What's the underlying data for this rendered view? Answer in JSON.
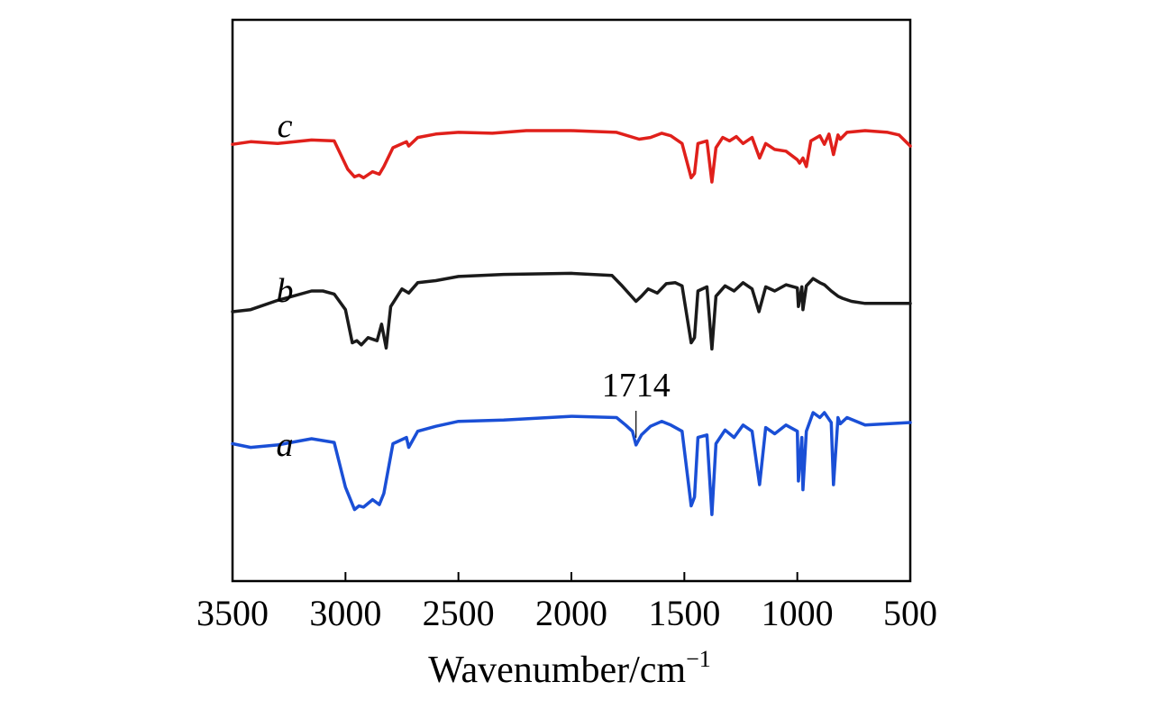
{
  "chart_data": {
    "type": "line",
    "title": "",
    "xlabel": "Wavenumber/cm",
    "xlabel_superscript": "−1",
    "ylabel": "",
    "xlim": [
      3500,
      500
    ],
    "x_reversed": true,
    "xticks": [
      3500,
      3000,
      2500,
      2000,
      1500,
      1000,
      500
    ],
    "xtick_labels": [
      "3500",
      "3000",
      "2500",
      "2000",
      "1500",
      "1000",
      "500"
    ],
    "grid": false,
    "y_units": "offset transmittance (arbitrary)",
    "series": [
      {
        "name": "c",
        "color": "#e0201b",
        "points": [
          [
            3500,
            0.84
          ],
          [
            3420,
            0.87
          ],
          [
            3300,
            0.85
          ],
          [
            3150,
            0.89
          ],
          [
            3050,
            0.88
          ],
          [
            2990,
            0.55
          ],
          [
            2960,
            0.46
          ],
          [
            2940,
            0.48
          ],
          [
            2920,
            0.45
          ],
          [
            2880,
            0.52
          ],
          [
            2850,
            0.49
          ],
          [
            2830,
            0.58
          ],
          [
            2790,
            0.8
          ],
          [
            2730,
            0.87
          ],
          [
            2720,
            0.82
          ],
          [
            2680,
            0.92
          ],
          [
            2600,
            0.96
          ],
          [
            2500,
            0.98
          ],
          [
            2350,
            0.97
          ],
          [
            2200,
            1.0
          ],
          [
            2000,
            1.0
          ],
          [
            1800,
            0.98
          ],
          [
            1700,
            0.9
          ],
          [
            1650,
            0.92
          ],
          [
            1600,
            0.97
          ],
          [
            1560,
            0.94
          ],
          [
            1510,
            0.85
          ],
          [
            1470,
            0.45
          ],
          [
            1455,
            0.5
          ],
          [
            1440,
            0.85
          ],
          [
            1400,
            0.88
          ],
          [
            1378,
            0.4
          ],
          [
            1360,
            0.8
          ],
          [
            1330,
            0.92
          ],
          [
            1300,
            0.88
          ],
          [
            1270,
            0.93
          ],
          [
            1240,
            0.85
          ],
          [
            1200,
            0.92
          ],
          [
            1167,
            0.68
          ],
          [
            1140,
            0.85
          ],
          [
            1100,
            0.78
          ],
          [
            1050,
            0.76
          ],
          [
            1000,
            0.66
          ],
          [
            990,
            0.62
          ],
          [
            975,
            0.68
          ],
          [
            960,
            0.58
          ],
          [
            940,
            0.88
          ],
          [
            900,
            0.94
          ],
          [
            880,
            0.84
          ],
          [
            860,
            0.96
          ],
          [
            840,
            0.72
          ],
          [
            820,
            0.95
          ],
          [
            810,
            0.9
          ],
          [
            780,
            0.98
          ],
          [
            700,
            1.0
          ],
          [
            600,
            0.98
          ],
          [
            550,
            0.95
          ],
          [
            500,
            0.82
          ]
        ]
      },
      {
        "name": "b",
        "color": "#1a1a1a",
        "points": [
          [
            3500,
            0.6
          ],
          [
            3420,
            0.62
          ],
          [
            3300,
            0.71
          ],
          [
            3150,
            0.8
          ],
          [
            3100,
            0.8
          ],
          [
            3050,
            0.77
          ],
          [
            3000,
            0.62
          ],
          [
            2970,
            0.3
          ],
          [
            2950,
            0.32
          ],
          [
            2930,
            0.28
          ],
          [
            2900,
            0.35
          ],
          [
            2860,
            0.32
          ],
          [
            2840,
            0.48
          ],
          [
            2820,
            0.25
          ],
          [
            2800,
            0.65
          ],
          [
            2750,
            0.82
          ],
          [
            2720,
            0.78
          ],
          [
            2680,
            0.88
          ],
          [
            2600,
            0.9
          ],
          [
            2500,
            0.94
          ],
          [
            2300,
            0.96
          ],
          [
            2000,
            0.97
          ],
          [
            1820,
            0.95
          ],
          [
            1780,
            0.86
          ],
          [
            1714,
            0.7
          ],
          [
            1690,
            0.75
          ],
          [
            1660,
            0.82
          ],
          [
            1620,
            0.78
          ],
          [
            1580,
            0.87
          ],
          [
            1540,
            0.88
          ],
          [
            1510,
            0.85
          ],
          [
            1470,
            0.3
          ],
          [
            1455,
            0.35
          ],
          [
            1440,
            0.8
          ],
          [
            1400,
            0.84
          ],
          [
            1378,
            0.24
          ],
          [
            1360,
            0.75
          ],
          [
            1320,
            0.85
          ],
          [
            1280,
            0.8
          ],
          [
            1240,
            0.88
          ],
          [
            1200,
            0.82
          ],
          [
            1170,
            0.6
          ],
          [
            1140,
            0.84
          ],
          [
            1100,
            0.8
          ],
          [
            1050,
            0.86
          ],
          [
            1000,
            0.83
          ],
          [
            995,
            0.65
          ],
          [
            980,
            0.84
          ],
          [
            975,
            0.62
          ],
          [
            960,
            0.85
          ],
          [
            930,
            0.92
          ],
          [
            900,
            0.88
          ],
          [
            880,
            0.86
          ],
          [
            850,
            0.8
          ],
          [
            820,
            0.75
          ],
          [
            800,
            0.73
          ],
          [
            760,
            0.7
          ],
          [
            700,
            0.68
          ],
          [
            600,
            0.68
          ],
          [
            500,
            0.68
          ]
        ]
      },
      {
        "name": "a",
        "color": "#1a4fd6",
        "points": [
          [
            3500,
            0.75
          ],
          [
            3420,
            0.72
          ],
          [
            3300,
            0.74
          ],
          [
            3150,
            0.79
          ],
          [
            3050,
            0.76
          ],
          [
            3000,
            0.4
          ],
          [
            2960,
            0.22
          ],
          [
            2940,
            0.25
          ],
          [
            2920,
            0.24
          ],
          [
            2880,
            0.3
          ],
          [
            2850,
            0.26
          ],
          [
            2830,
            0.35
          ],
          [
            2790,
            0.75
          ],
          [
            2730,
            0.8
          ],
          [
            2720,
            0.72
          ],
          [
            2680,
            0.85
          ],
          [
            2600,
            0.89
          ],
          [
            2500,
            0.93
          ],
          [
            2300,
            0.94
          ],
          [
            2000,
            0.97
          ],
          [
            1800,
            0.96
          ],
          [
            1760,
            0.9
          ],
          [
            1730,
            0.85
          ],
          [
            1714,
            0.74
          ],
          [
            1690,
            0.82
          ],
          [
            1650,
            0.89
          ],
          [
            1600,
            0.93
          ],
          [
            1560,
            0.9
          ],
          [
            1510,
            0.85
          ],
          [
            1470,
            0.25
          ],
          [
            1455,
            0.32
          ],
          [
            1440,
            0.8
          ],
          [
            1400,
            0.82
          ],
          [
            1378,
            0.18
          ],
          [
            1360,
            0.75
          ],
          [
            1320,
            0.86
          ],
          [
            1280,
            0.8
          ],
          [
            1240,
            0.9
          ],
          [
            1200,
            0.85
          ],
          [
            1167,
            0.42
          ],
          [
            1140,
            0.88
          ],
          [
            1100,
            0.83
          ],
          [
            1050,
            0.9
          ],
          [
            1000,
            0.85
          ],
          [
            995,
            0.45
          ],
          [
            980,
            0.8
          ],
          [
            975,
            0.38
          ],
          [
            960,
            0.85
          ],
          [
            930,
            1.0
          ],
          [
            900,
            0.96
          ],
          [
            880,
            1.0
          ],
          [
            850,
            0.92
          ],
          [
            840,
            0.42
          ],
          [
            820,
            0.96
          ],
          [
            810,
            0.91
          ],
          [
            780,
            0.96
          ],
          [
            700,
            0.9
          ],
          [
            600,
            0.91
          ],
          [
            500,
            0.92
          ]
        ]
      }
    ],
    "annotations": [
      {
        "text": "1714",
        "x": 1714,
        "series": "a"
      }
    ]
  }
}
